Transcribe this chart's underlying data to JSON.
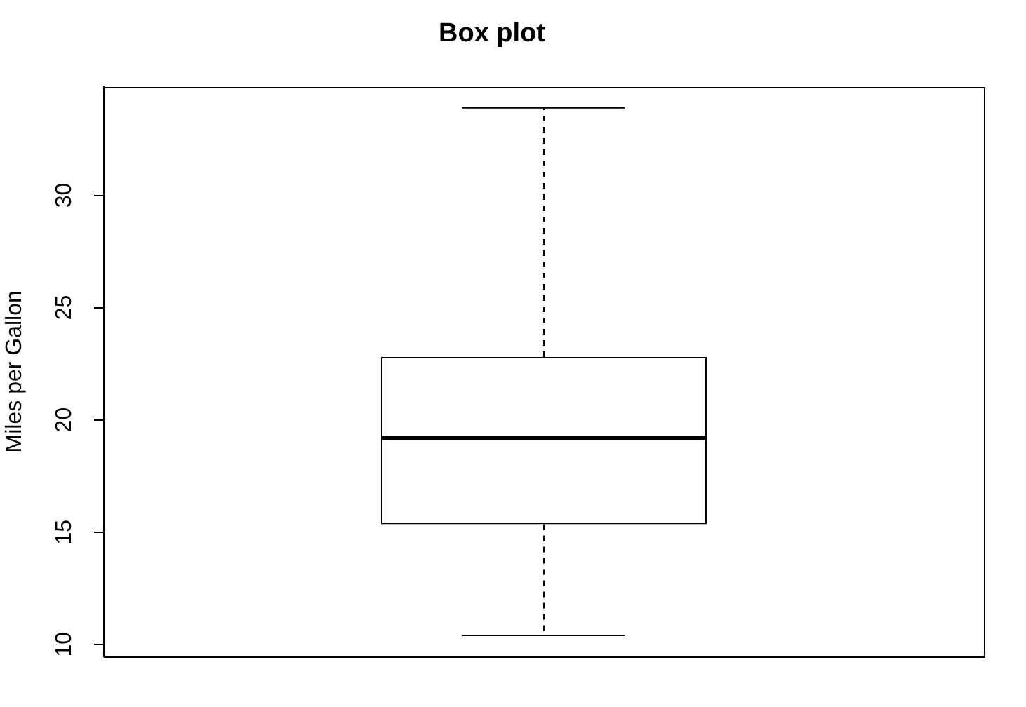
{
  "chart_data": {
    "type": "box",
    "title": "Box plot",
    "ylabel": "Miles per Gallon",
    "categories": [
      null
    ],
    "boxes": [
      {
        "low": 10.4,
        "q1": 15.35,
        "median": 19.2,
        "q3": 22.8,
        "high": 33.9
      }
    ],
    "color": "#000000",
    "ylim": [
      9.46,
      34.84
    ],
    "yticks": [
      10,
      15,
      20,
      25,
      30
    ],
    "tick_labels": "y",
    "grid": false,
    "legend": false
  }
}
